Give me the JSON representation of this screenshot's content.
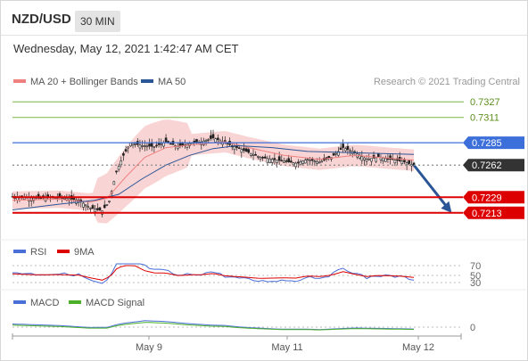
{
  "header": {
    "pair": "NZD/USD",
    "timeframe": "30 MIN",
    "datetime": "Wednesday, May 12, 2021 1:42:47 AM CET"
  },
  "colors": {
    "ma20": "#f08080",
    "ma50": "#2a5597",
    "bb_fill": "#f7c6c6",
    "support": "#dd0000",
    "resistance_blue": "#3c6fd9",
    "resistance_green": "#7cb342",
    "current": "#333333",
    "arrow": "#2a5597",
    "rsi": "#4a6fd6",
    "rsi_ma": "#dd0000",
    "macd": "#4a6fd6",
    "macd_signal": "#4caf2a"
  },
  "chart_data": {
    "type": "candlestick",
    "source_note": "Research © 2021 Trading Central",
    "legend": [
      {
        "key": "ma20",
        "label": "MA 20 + Bollinger Bands"
      },
      {
        "key": "ma50",
        "label": "MA 50"
      }
    ],
    "x_labels": [
      "May 9",
      "May 11",
      "May 12"
    ],
    "y_range": [
      0.72,
      0.734
    ],
    "levels": [
      {
        "value": 0.7327,
        "label": "0.7327",
        "kind": "resistance_green"
      },
      {
        "value": 0.7311,
        "label": "0.7311",
        "kind": "resistance_green"
      },
      {
        "value": 0.7285,
        "label": "0.7285",
        "kind": "resistance_blue"
      },
      {
        "value": 0.7262,
        "label": "0.7262",
        "kind": "current"
      },
      {
        "value": 0.7229,
        "label": "0.7229",
        "kind": "support"
      },
      {
        "value": 0.7213,
        "label": "0.7213",
        "kind": "support"
      }
    ],
    "price_path": [
      [
        0,
        0.723
      ],
      [
        10,
        0.7228
      ],
      [
        20,
        0.7229
      ],
      [
        28,
        0.7226
      ],
      [
        33,
        0.7218
      ],
      [
        38,
        0.7215
      ],
      [
        41,
        0.7225
      ],
      [
        44,
        0.7255
      ],
      [
        47,
        0.7272
      ],
      [
        50,
        0.7285
      ],
      [
        55,
        0.7282
      ],
      [
        60,
        0.7281
      ],
      [
        65,
        0.7286
      ],
      [
        70,
        0.7281
      ],
      [
        75,
        0.7284
      ],
      [
        80,
        0.7286
      ],
      [
        85,
        0.729
      ],
      [
        90,
        0.7285
      ],
      [
        95,
        0.728
      ],
      [
        100,
        0.7275
      ],
      [
        105,
        0.727
      ],
      [
        110,
        0.7268
      ],
      [
        115,
        0.7266
      ],
      [
        120,
        0.7264
      ],
      [
        125,
        0.7268
      ],
      [
        130,
        0.7265
      ],
      [
        135,
        0.727
      ],
      [
        140,
        0.728
      ],
      [
        145,
        0.7275
      ],
      [
        150,
        0.7268
      ],
      [
        155,
        0.727
      ],
      [
        160,
        0.7268
      ],
      [
        165,
        0.7266
      ],
      [
        170,
        0.7262
      ]
    ],
    "ma20_path": [
      [
        0,
        0.7226
      ],
      [
        20,
        0.7227
      ],
      [
        33,
        0.7224
      ],
      [
        40,
        0.7228
      ],
      [
        48,
        0.725
      ],
      [
        56,
        0.727
      ],
      [
        65,
        0.728
      ],
      [
        80,
        0.7284
      ],
      [
        90,
        0.7286
      ],
      [
        100,
        0.728
      ],
      [
        115,
        0.7272
      ],
      [
        130,
        0.7268
      ],
      [
        145,
        0.7272
      ],
      [
        160,
        0.7269
      ],
      [
        170,
        0.7267
      ]
    ],
    "ma50_path": [
      [
        0,
        0.7216
      ],
      [
        20,
        0.7222
      ],
      [
        35,
        0.7226
      ],
      [
        45,
        0.7232
      ],
      [
        55,
        0.7248
      ],
      [
        65,
        0.7262
      ],
      [
        75,
        0.7272
      ],
      [
        85,
        0.7279
      ],
      [
        95,
        0.7282
      ],
      [
        110,
        0.728
      ],
      [
        125,
        0.7276
      ],
      [
        140,
        0.7275
      ],
      [
        155,
        0.7274
      ],
      [
        170,
        0.7273
      ]
    ],
    "forecast": {
      "from": [
        170,
        0.7262
      ],
      "to": [
        186,
        0.7213
      ]
    },
    "panels": [
      {
        "name": "RSI",
        "legend": [
          {
            "key": "rsi",
            "label": "RSI"
          },
          {
            "key": "rsi_ma",
            "label": "9MA"
          }
        ],
        "levels": [
          "70",
          "50",
          "30"
        ]
      },
      {
        "name": "MACD",
        "legend": [
          {
            "key": "macd",
            "label": "MACD"
          },
          {
            "key": "macd_signal",
            "label": "MACD Signal"
          }
        ],
        "levels": [
          "0"
        ]
      }
    ]
  }
}
